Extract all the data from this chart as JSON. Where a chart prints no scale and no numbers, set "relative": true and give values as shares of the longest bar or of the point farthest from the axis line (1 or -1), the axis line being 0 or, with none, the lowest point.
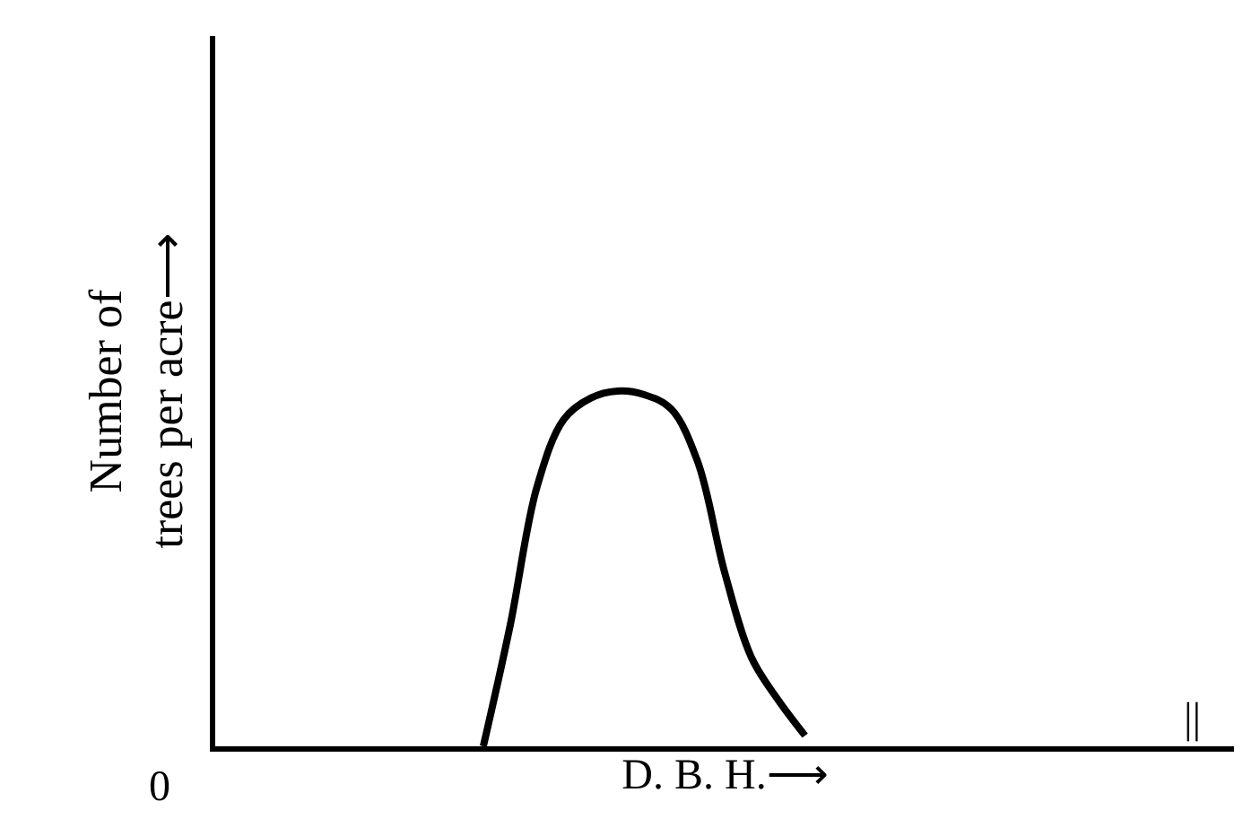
{
  "chart_data": {
    "type": "line",
    "relative": true,
    "xlabel": "D. B. H.⟶",
    "ylabel": "Number of\ntrees per acre⟶",
    "color": "#000000",
    "marker": "none",
    "line_style": "solid",
    "tick_labels": false,
    "categories": [
      null,
      null,
      null,
      null,
      null,
      null,
      null,
      null,
      null,
      null,
      null,
      null,
      null,
      null,
      null,
      null,
      null,
      null,
      null,
      null,
      null,
      null,
      null,
      null,
      null,
      null,
      null,
      null,
      null,
      null,
      null,
      null,
      null,
      null,
      null,
      null,
      null,
      null,
      null
    ],
    "values": [
      null,
      null,
      null,
      null,
      null,
      null,
      null,
      null,
      null,
      null,
      0,
      0.34,
      0.73,
      0.92,
      0.98,
      1.0,
      0.99,
      0.95,
      0.8,
      0.49,
      0.25,
      0.13,
      0.03,
      null,
      null,
      null,
      null,
      null,
      null,
      null,
      null,
      null,
      null,
      null,
      null,
      null,
      null,
      null,
      null
    ],
    "annotations": [
      "0",
      "||"
    ]
  }
}
